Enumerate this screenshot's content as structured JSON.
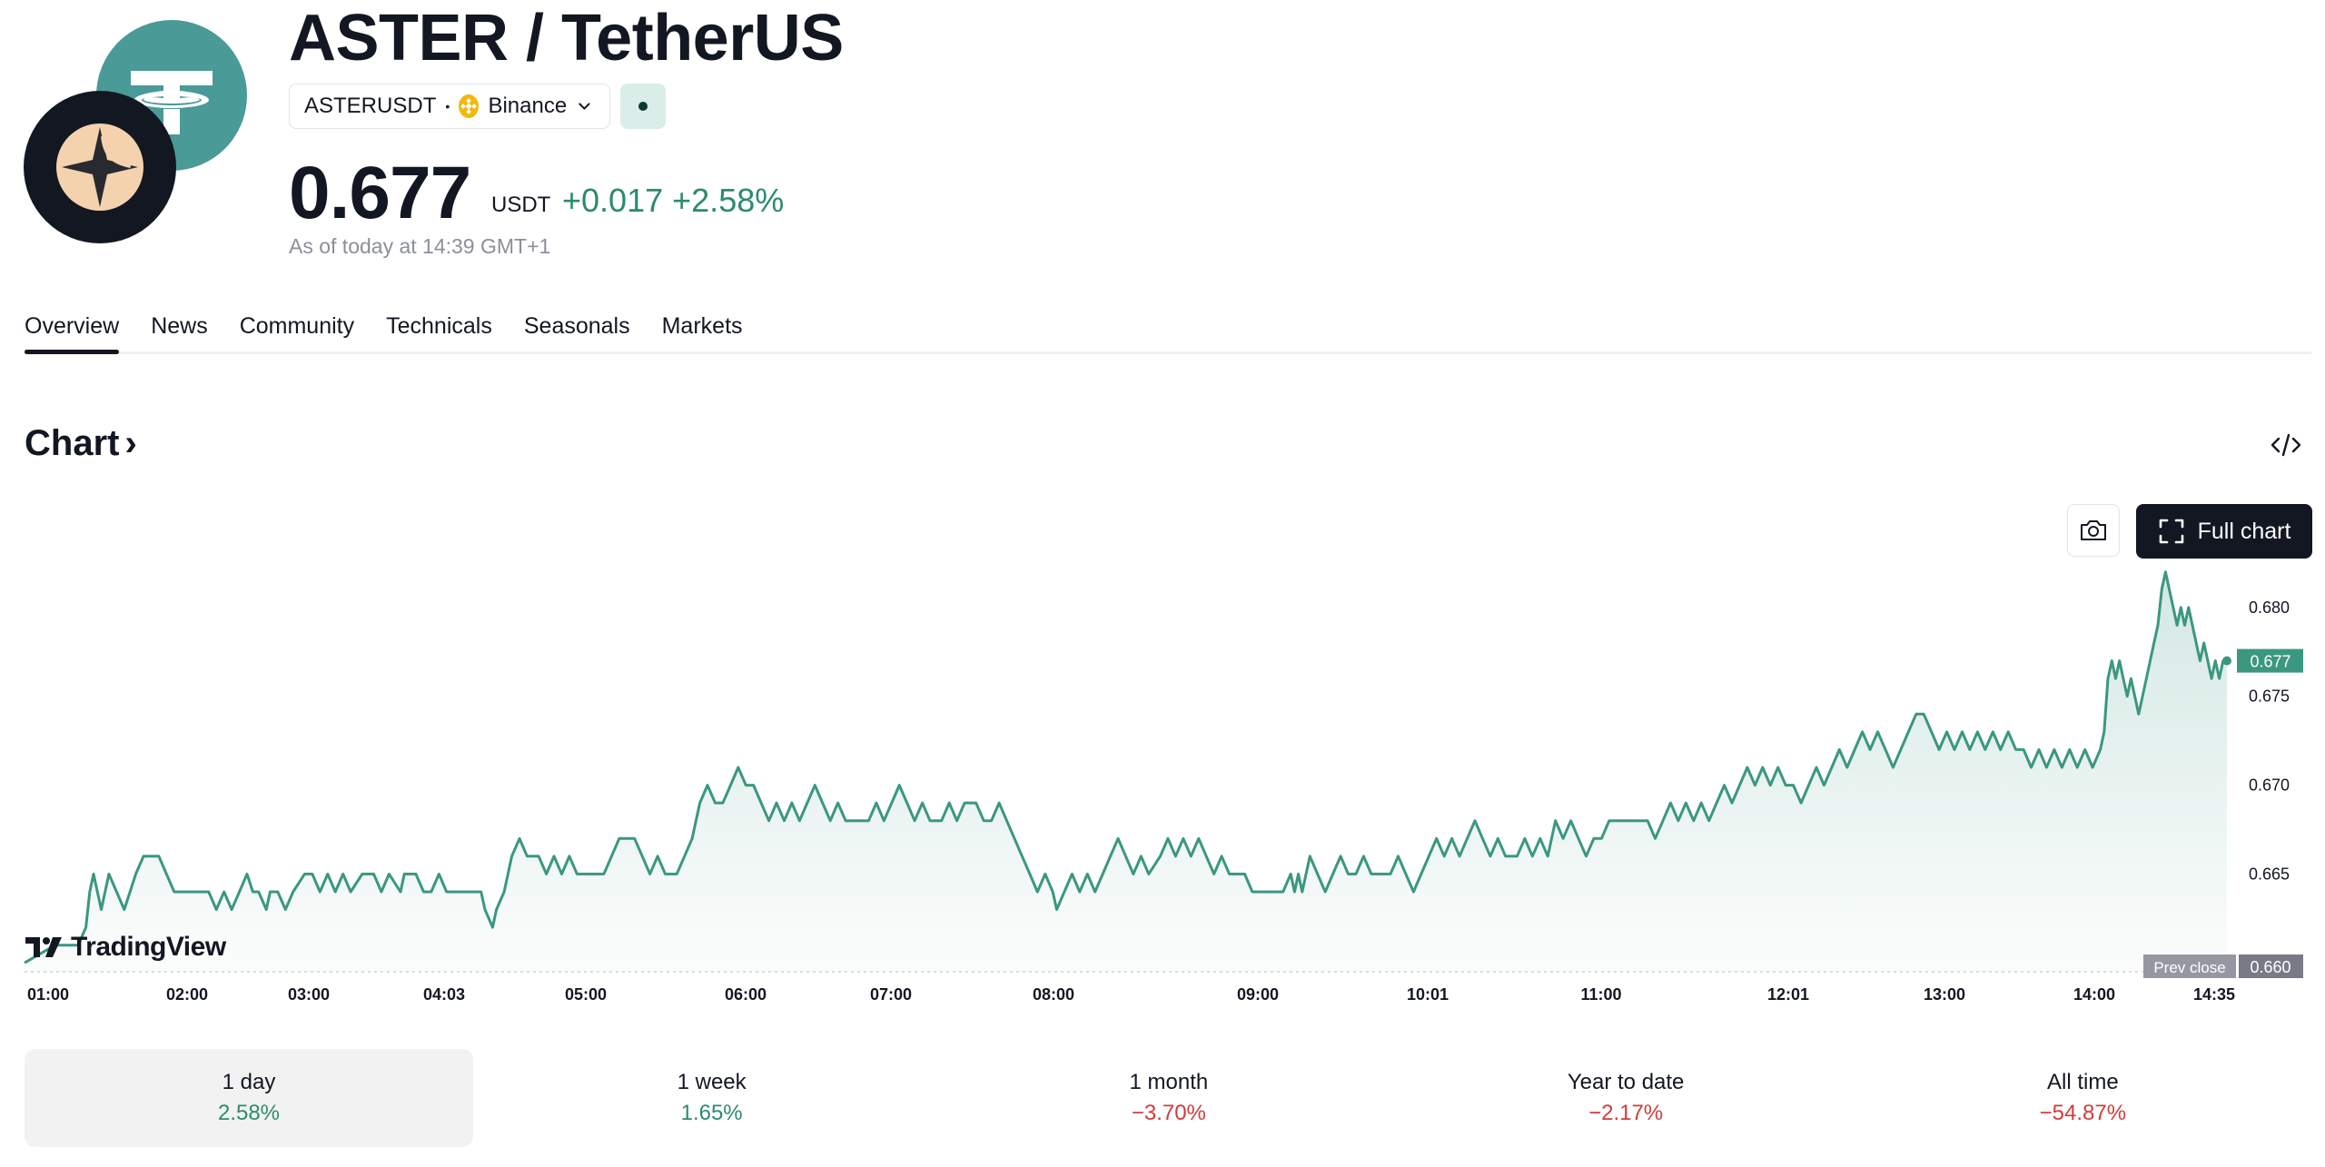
{
  "header": {
    "title": "ASTER / TetherUS",
    "symbol": "ASTERUSDT",
    "separator": "•",
    "exchange": "Binance",
    "price": "0.677",
    "currency": "USDT",
    "change_abs": "+0.017",
    "change_pct": "+2.58%",
    "as_of": "As of today at 14:39 GMT+1"
  },
  "tabs": [
    {
      "label": "Overview"
    },
    {
      "label": "News"
    },
    {
      "label": "Community"
    },
    {
      "label": "Technicals"
    },
    {
      "label": "Seasonals"
    },
    {
      "label": "Markets"
    }
  ],
  "chart_section": {
    "title": "Chart",
    "chevron": "›",
    "full_chart_label": "Full chart",
    "watermark": "TradingView"
  },
  "colors": {
    "accent_green": "#2d8a6f",
    "line": "#3b9780",
    "negative": "#d33b3b",
    "tether_teal": "#4a9a98",
    "aster_peach": "#f3d2ad"
  },
  "icons": [
    "tether-logo-icon",
    "aster-logo-icon",
    "binance-icon",
    "chevron-down-icon",
    "embed-code-icon",
    "camera-icon",
    "fullscreen-icon",
    "tradingview-logo-icon"
  ],
  "chart_data": {
    "type": "area",
    "x_ticks": [
      "01:00",
      "02:00",
      "03:00",
      "04:03",
      "05:00",
      "06:00",
      "07:00",
      "08:00",
      "09:00",
      "10:01",
      "11:00",
      "12:01",
      "13:00",
      "14:00",
      "14:35"
    ],
    "y_ticks": [
      "0.680",
      "0.675",
      "0.670",
      "0.665"
    ],
    "ylim": [
      0.6595,
      0.6825
    ],
    "last_price_label": "0.677",
    "prev_close_label": "Prev close",
    "prev_close_value": "0.660",
    "x_start": "00:39",
    "x_end": "14:39",
    "series": [
      {
        "values": [
          [
            0,
            0.66
          ],
          [
            16,
            0.661
          ],
          [
            28,
            0.661
          ],
          [
            32,
            0.662
          ],
          [
            34,
            0.664
          ],
          [
            36,
            0.665
          ],
          [
            40,
            0.663
          ],
          [
            44,
            0.665
          ],
          [
            48,
            0.664
          ],
          [
            52,
            0.663
          ],
          [
            55,
            0.664
          ],
          [
            58,
            0.665
          ],
          [
            62,
            0.666
          ],
          [
            70,
            0.666
          ],
          [
            74,
            0.665
          ],
          [
            78,
            0.664
          ],
          [
            96,
            0.664
          ],
          [
            100,
            0.663
          ],
          [
            104,
            0.664
          ],
          [
            108,
            0.663
          ],
          [
            112,
            0.664
          ],
          [
            116,
            0.665
          ],
          [
            119,
            0.664
          ],
          [
            122,
            0.664
          ],
          [
            126,
            0.663
          ],
          [
            128,
            0.664
          ],
          [
            132,
            0.664
          ],
          [
            136,
            0.663
          ],
          [
            140,
            0.664
          ],
          [
            146,
            0.665
          ],
          [
            150,
            0.665
          ],
          [
            154,
            0.664
          ],
          [
            158,
            0.665
          ],
          [
            162,
            0.664
          ],
          [
            166,
            0.665
          ],
          [
            170,
            0.664
          ],
          [
            176,
            0.665
          ],
          [
            182,
            0.665
          ],
          [
            186,
            0.664
          ],
          [
            190,
            0.665
          ],
          [
            196,
            0.664
          ],
          [
            198,
            0.665
          ],
          [
            204,
            0.665
          ],
          [
            208,
            0.664
          ],
          [
            212,
            0.664
          ],
          [
            216,
            0.665
          ],
          [
            220,
            0.664
          ],
          [
            238,
            0.664
          ],
          [
            240,
            0.663
          ],
          [
            244,
            0.662
          ],
          [
            246,
            0.663
          ],
          [
            250,
            0.664
          ],
          [
            254,
            0.666
          ],
          [
            258,
            0.667
          ],
          [
            262,
            0.666
          ],
          [
            268,
            0.666
          ],
          [
            272,
            0.665
          ],
          [
            276,
            0.666
          ],
          [
            280,
            0.665
          ],
          [
            284,
            0.666
          ],
          [
            288,
            0.665
          ],
          [
            302,
            0.665
          ],
          [
            306,
            0.666
          ],
          [
            310,
            0.667
          ],
          [
            318,
            0.667
          ],
          [
            322,
            0.666
          ],
          [
            326,
            0.665
          ],
          [
            330,
            0.666
          ],
          [
            334,
            0.665
          ],
          [
            340,
            0.665
          ],
          [
            344,
            0.666
          ],
          [
            348,
            0.667
          ],
          [
            352,
            0.669
          ],
          [
            356,
            0.67
          ],
          [
            360,
            0.669
          ],
          [
            364,
            0.669
          ],
          [
            368,
            0.67
          ],
          [
            372,
            0.671
          ],
          [
            376,
            0.67
          ],
          [
            380,
            0.67
          ],
          [
            384,
            0.669
          ],
          [
            388,
            0.668
          ],
          [
            392,
            0.669
          ],
          [
            396,
            0.668
          ],
          [
            400,
            0.669
          ],
          [
            404,
            0.668
          ],
          [
            408,
            0.669
          ],
          [
            412,
            0.67
          ],
          [
            416,
            0.669
          ],
          [
            420,
            0.668
          ],
          [
            424,
            0.669
          ],
          [
            428,
            0.668
          ],
          [
            440,
            0.668
          ],
          [
            444,
            0.669
          ],
          [
            448,
            0.668
          ],
          [
            452,
            0.669
          ],
          [
            456,
            0.67
          ],
          [
            460,
            0.669
          ],
          [
            464,
            0.668
          ],
          [
            468,
            0.669
          ],
          [
            472,
            0.668
          ],
          [
            478,
            0.668
          ],
          [
            482,
            0.669
          ],
          [
            486,
            0.668
          ],
          [
            490,
            0.669
          ],
          [
            496,
            0.669
          ],
          [
            500,
            0.668
          ],
          [
            504,
            0.668
          ],
          [
            508,
            0.669
          ],
          [
            512,
            0.668
          ],
          [
            516,
            0.667
          ],
          [
            520,
            0.666
          ],
          [
            524,
            0.665
          ],
          [
            528,
            0.664
          ],
          [
            532,
            0.665
          ],
          [
            536,
            0.664
          ],
          [
            538,
            0.663
          ],
          [
            542,
            0.664
          ],
          [
            546,
            0.665
          ],
          [
            550,
            0.664
          ],
          [
            554,
            0.665
          ],
          [
            558,
            0.664
          ],
          [
            562,
            0.665
          ],
          [
            566,
            0.666
          ],
          [
            570,
            0.667
          ],
          [
            574,
            0.666
          ],
          [
            578,
            0.665
          ],
          [
            582,
            0.666
          ],
          [
            586,
            0.665
          ],
          [
            592,
            0.666
          ],
          [
            596,
            0.667
          ],
          [
            600,
            0.666
          ],
          [
            604,
            0.667
          ],
          [
            608,
            0.666
          ],
          [
            612,
            0.667
          ],
          [
            616,
            0.666
          ],
          [
            620,
            0.665
          ],
          [
            624,
            0.666
          ],
          [
            628,
            0.665
          ],
          [
            636,
            0.665
          ],
          [
            640,
            0.664
          ],
          [
            656,
            0.664
          ],
          [
            660,
            0.665
          ],
          [
            662,
            0.664
          ],
          [
            664,
            0.665
          ],
          [
            666,
            0.664
          ],
          [
            670,
            0.666
          ],
          [
            674,
            0.665
          ],
          [
            678,
            0.664
          ],
          [
            682,
            0.665
          ],
          [
            686,
            0.666
          ],
          [
            690,
            0.665
          ],
          [
            694,
            0.665
          ],
          [
            698,
            0.666
          ],
          [
            702,
            0.665
          ],
          [
            712,
            0.665
          ],
          [
            716,
            0.666
          ],
          [
            720,
            0.665
          ],
          [
            724,
            0.664
          ],
          [
            728,
            0.665
          ],
          [
            732,
            0.666
          ],
          [
            736,
            0.667
          ],
          [
            740,
            0.666
          ],
          [
            744,
            0.667
          ],
          [
            748,
            0.666
          ],
          [
            752,
            0.667
          ],
          [
            756,
            0.668
          ],
          [
            760,
            0.667
          ],
          [
            764,
            0.666
          ],
          [
            768,
            0.667
          ],
          [
            772,
            0.666
          ],
          [
            778,
            0.666
          ],
          [
            782,
            0.667
          ],
          [
            786,
            0.666
          ],
          [
            790,
            0.667
          ],
          [
            794,
            0.666
          ],
          [
            798,
            0.668
          ],
          [
            802,
            0.667
          ],
          [
            806,
            0.668
          ],
          [
            810,
            0.667
          ],
          [
            814,
            0.666
          ],
          [
            818,
            0.667
          ],
          [
            822,
            0.667
          ],
          [
            826,
            0.668
          ],
          [
            846,
            0.668
          ],
          [
            850,
            0.667
          ],
          [
            854,
            0.668
          ],
          [
            858,
            0.669
          ],
          [
            862,
            0.668
          ],
          [
            866,
            0.669
          ],
          [
            870,
            0.668
          ],
          [
            874,
            0.669
          ],
          [
            878,
            0.668
          ],
          [
            882,
            0.669
          ],
          [
            886,
            0.67
          ],
          [
            890,
            0.669
          ],
          [
            894,
            0.67
          ],
          [
            898,
            0.671
          ],
          [
            902,
            0.67
          ],
          [
            906,
            0.671
          ],
          [
            910,
            0.67
          ],
          [
            914,
            0.671
          ],
          [
            918,
            0.67
          ],
          [
            922,
            0.67
          ],
          [
            926,
            0.669
          ],
          [
            930,
            0.67
          ],
          [
            934,
            0.671
          ],
          [
            938,
            0.67
          ],
          [
            942,
            0.671
          ],
          [
            946,
            0.672
          ],
          [
            950,
            0.671
          ],
          [
            954,
            0.672
          ],
          [
            958,
            0.673
          ],
          [
            962,
            0.672
          ],
          [
            966,
            0.673
          ],
          [
            970,
            0.672
          ],
          [
            974,
            0.671
          ],
          [
            978,
            0.672
          ],
          [
            982,
            0.673
          ],
          [
            986,
            0.674
          ],
          [
            990,
            0.674
          ],
          [
            994,
            0.673
          ],
          [
            998,
            0.672
          ],
          [
            1002,
            0.673
          ],
          [
            1006,
            0.672
          ],
          [
            1010,
            0.673
          ],
          [
            1014,
            0.672
          ],
          [
            1018,
            0.673
          ],
          [
            1022,
            0.672
          ],
          [
            1026,
            0.673
          ],
          [
            1030,
            0.672
          ],
          [
            1034,
            0.673
          ],
          [
            1038,
            0.672
          ],
          [
            1042,
            0.672
          ],
          [
            1046,
            0.671
          ],
          [
            1050,
            0.672
          ],
          [
            1054,
            0.671
          ],
          [
            1058,
            0.672
          ],
          [
            1062,
            0.671
          ],
          [
            1066,
            0.672
          ],
          [
            1070,
            0.671
          ],
          [
            1074,
            0.672
          ],
          [
            1078,
            0.671
          ],
          [
            1082,
            0.672
          ],
          [
            1084,
            0.673
          ],
          [
            1086,
            0.676
          ],
          [
            1088,
            0.677
          ],
          [
            1090,
            0.676
          ],
          [
            1092,
            0.677
          ],
          [
            1094,
            0.676
          ],
          [
            1096,
            0.675
          ],
          [
            1098,
            0.676
          ],
          [
            1100,
            0.675
          ],
          [
            1102,
            0.674
          ],
          [
            1104,
            0.675
          ],
          [
            1106,
            0.676
          ],
          [
            1108,
            0.677
          ],
          [
            1110,
            0.678
          ],
          [
            1112,
            0.679
          ],
          [
            1114,
            0.681
          ],
          [
            1116,
            0.682
          ],
          [
            1118,
            0.681
          ],
          [
            1120,
            0.68
          ],
          [
            1122,
            0.679
          ],
          [
            1124,
            0.68
          ],
          [
            1126,
            0.679
          ],
          [
            1128,
            0.68
          ],
          [
            1130,
            0.679
          ],
          [
            1132,
            0.678
          ],
          [
            1134,
            0.677
          ],
          [
            1136,
            0.678
          ],
          [
            1138,
            0.677
          ],
          [
            1140,
            0.676
          ],
          [
            1142,
            0.677
          ],
          [
            1144,
            0.676
          ],
          [
            1146,
            0.677
          ],
          [
            1148,
            0.677
          ]
        ]
      }
    ]
  },
  "periods": [
    {
      "label": "1 day",
      "value": "2.58%",
      "sign": "pos"
    },
    {
      "label": "1 week",
      "value": "1.65%",
      "sign": "pos"
    },
    {
      "label": "1 month",
      "value": "−3.70%",
      "sign": "neg"
    },
    {
      "label": "Year to date",
      "value": "−2.17%",
      "sign": "neg"
    },
    {
      "label": "All time",
      "value": "−54.87%",
      "sign": "neg"
    }
  ]
}
